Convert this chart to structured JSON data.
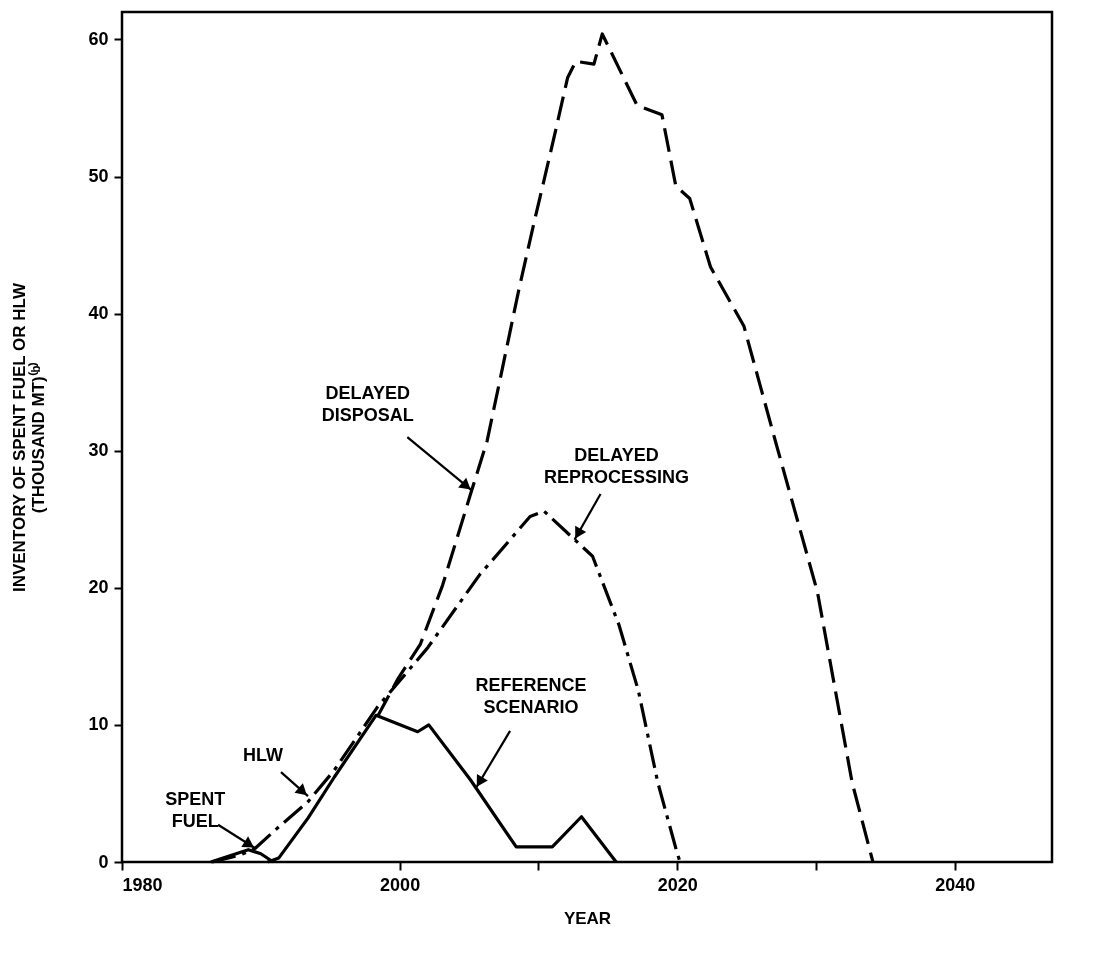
{
  "chart_data": {
    "type": "line",
    "xlabel": "YEAR",
    "ylabel": "INVENTORY OF SPENT FUEL OR HLW\n(THOUSAND MT)⁽ᵇ⁾",
    "xlim": [
      1980,
      2047
    ],
    "xticks": [
      1980,
      {
        "value": 2010,
        "label": null
      },
      2000,
      2020,
      {
        "value": 2030,
        "label": null
      },
      2040
    ],
    "ylim": [
      0,
      62
    ],
    "yticks": [
      0,
      10,
      20,
      30,
      40,
      50,
      60
    ],
    "grid": false,
    "marker": "none",
    "series": [
      {
        "color": "#000000",
        "line_style": "dashed",
        "x": [
          1998.4,
          1999.9,
          2001.5,
          2003.1,
          2005.1,
          2006.3,
          2007.3,
          2008.6,
          2009.7,
          2011.0,
          2012.1,
          2012.7,
          2014.0,
          2014.6,
          2017.1,
          2018.9,
          2019.9,
          2020.9,
          2022.4,
          2024.8,
          2027.1,
          2030.1,
          2032.6,
          2034.1
        ],
        "values": [
          10.6,
          13.4,
          15.9,
          20.2,
          26.8,
          30.7,
          35.5,
          41.8,
          46.7,
          52.3,
          57.2,
          58.4,
          58.2,
          60.4,
          55.2,
          54.5,
          49.3,
          48.4,
          43.4,
          39.1,
          30.6,
          19.7,
          5.8,
          0
        ]
      },
      {
        "color": "#000000",
        "line_style": "dashdot",
        "x": [
          1986.5,
          1988.5,
          1989.6,
          1991.0,
          1993.4,
          1995.3,
          1998.4,
          2002.0,
          2005.8,
          2006.5,
          2009.4,
          2010.4,
          2013.9,
          2015.8,
          2017.2,
          2018.6,
          2019.9,
          2020.2
        ],
        "values": [
          0,
          0.5,
          1.0,
          2.3,
          4.4,
          6.7,
          11.3,
          15.6,
          21.0,
          21.8,
          25.2,
          25.6,
          22.3,
          17.3,
          12.5,
          5.8,
          1.0,
          0
        ]
      },
      {
        "color": "#000000",
        "line_style": "solid",
        "x": [
          1986.4,
          1989.1,
          1990.0,
          1990.9
        ],
        "values": [
          0,
          0.9,
          0.6,
          0
        ]
      },
      {
        "color": "#000000",
        "line_style": "solid",
        "x": [
          1990.5,
          1991.3,
          1993.4,
          1995.3,
          1998.3,
          2001.3,
          2002.1,
          2005.1,
          2008.4,
          2011.0,
          2013.1,
          2015.6
        ],
        "values": [
          0,
          0.3,
          3.2,
          6.2,
          10.7,
          9.5,
          10.0,
          6.0,
          1.1,
          1.1,
          3.3,
          0
        ]
      }
    ],
    "annotations": [
      {
        "text": "DELAYED DISPOSAL",
        "x": 2005.2,
        "y": 27.1
      },
      {
        "text": "DELAYED REPROCESSING",
        "x": 2012.6,
        "y": 23.5
      },
      {
        "text": "REFERENCE SCENARIO",
        "x": 2005.5,
        "y": 5.4
      },
      {
        "text": "HLW",
        "x": 1993.4,
        "y": 4.8
      },
      {
        "text": "SPENT FUEL",
        "x": 1989.6,
        "y": 1.0
      }
    ]
  }
}
